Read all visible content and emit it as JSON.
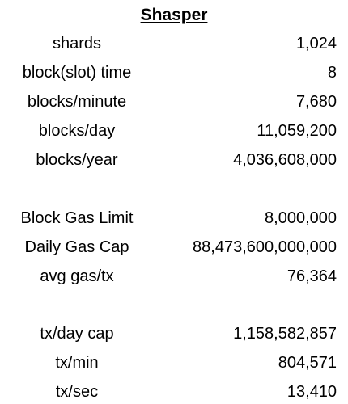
{
  "title": "Shasper",
  "groups": [
    {
      "rows": [
        {
          "label": "shards",
          "value": "1,024"
        },
        {
          "label": "block(slot) time",
          "value": "8"
        },
        {
          "label": "blocks/minute",
          "value": "7,680"
        },
        {
          "label": "blocks/day",
          "value": "11,059,200"
        },
        {
          "label": "blocks/year",
          "value": "4,036,608,000"
        }
      ]
    },
    {
      "rows": [
        {
          "label": "Block Gas Limit",
          "value": "8,000,000"
        },
        {
          "label": "Daily Gas Cap",
          "value": "88,473,600,000,000"
        },
        {
          "label": "avg gas/tx",
          "value": "76,364"
        }
      ]
    },
    {
      "rows": [
        {
          "label": "tx/day cap",
          "value": "1,158,582,857"
        },
        {
          "label": "tx/min",
          "value": "804,571"
        },
        {
          "label": "tx/sec",
          "value": "13,410"
        }
      ]
    }
  ]
}
